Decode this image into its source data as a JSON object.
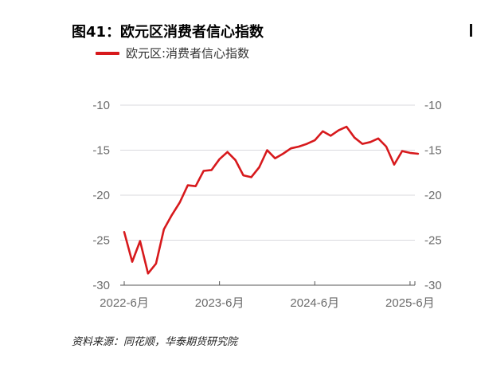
{
  "figure": {
    "title": "图41：欧元区消费者信心指数",
    "source": "资料来源：同花顺，华泰期货研究院"
  },
  "colors": {
    "series": "#d7191c",
    "grid": "#d9d9de",
    "axis": "#555555"
  },
  "chart_data": {
    "type": "line",
    "title": "图41：欧元区消费者信心指数",
    "xlabel": "",
    "ylabel": "",
    "ylim": [
      -30,
      -10
    ],
    "yticks": [
      -10,
      -15,
      -20,
      -25,
      -30
    ],
    "ytick_labels": [
      "-10",
      "-15",
      "-20",
      "-25",
      "-30"
    ],
    "y2ticks": [
      -10,
      -15,
      -20,
      -25,
      -30
    ],
    "y2tick_labels": [
      "-10",
      "-15",
      "-20",
      "-25",
      "-30"
    ],
    "xtick_labels": [
      "2022-6月",
      "2023-6月",
      "2024-6月",
      "2025-6月"
    ],
    "grid": "horizontal",
    "legend_position": "top-left",
    "series": [
      {
        "name": "欧元区:消费者信心指数",
        "x": [
          "2022-06",
          "2022-07",
          "2022-08",
          "2022-09",
          "2022-10",
          "2022-11",
          "2022-12",
          "2023-01",
          "2023-02",
          "2023-03",
          "2023-04",
          "2023-05",
          "2023-06",
          "2023-07",
          "2023-08",
          "2023-09",
          "2023-10",
          "2023-11",
          "2023-12",
          "2024-01",
          "2024-02",
          "2024-03",
          "2024-04",
          "2024-05",
          "2024-06",
          "2024-07",
          "2024-08",
          "2024-09",
          "2024-10",
          "2024-11",
          "2024-12",
          "2025-01",
          "2025-02",
          "2025-03",
          "2025-04",
          "2025-05",
          "2025-06",
          "2025-07"
        ],
        "values": [
          -24.1,
          -27.4,
          -25.1,
          -28.7,
          -27.6,
          -23.8,
          -22.2,
          -20.8,
          -18.9,
          -19.0,
          -17.3,
          -17.2,
          -16.0,
          -15.2,
          -16.1,
          -17.8,
          -18.0,
          -16.9,
          -15.0,
          -15.9,
          -15.4,
          -14.8,
          -14.6,
          -14.3,
          -13.9,
          -12.9,
          -13.4,
          -12.8,
          -12.4,
          -13.6,
          -14.3,
          -14.1,
          -13.7,
          -14.6,
          -16.6,
          -15.1,
          -15.3,
          -15.4
        ]
      }
    ]
  }
}
